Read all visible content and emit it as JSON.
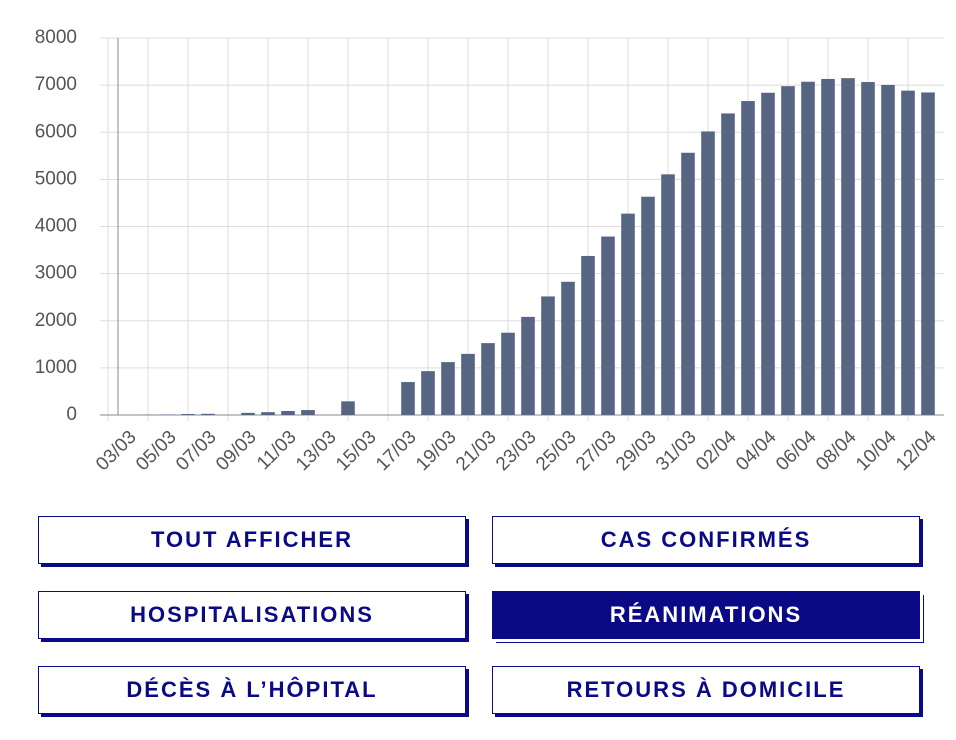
{
  "chart_data": {
    "type": "bar",
    "color": "#566682",
    "categories": [
      "03/03",
      null,
      "05/03",
      null,
      "07/03",
      null,
      "09/03",
      null,
      "11/03",
      null,
      "13/03",
      null,
      "15/03",
      null,
      "17/03",
      null,
      "19/03",
      null,
      "21/03",
      null,
      "23/03",
      null,
      "25/03",
      null,
      "27/03",
      null,
      "29/03",
      null,
      "31/03",
      null,
      "02/04",
      null,
      "04/04",
      null,
      "06/04",
      null,
      "08/04",
      null,
      "10/04",
      null,
      "12/04"
    ],
    "values": [
      0,
      5,
      10,
      20,
      25,
      0,
      45,
      60,
      85,
      105,
      0,
      290,
      0,
      0,
      699,
      931,
      1122,
      1297,
      1525,
      1746,
      2082,
      2516,
      2827,
      3375,
      3787,
      4273,
      4632,
      5107,
      5565,
      6017,
      6399,
      6662,
      6838,
      6978,
      7072,
      7131,
      7148,
      7066,
      7004,
      6883,
      6845
    ],
    "ylim": [
      0,
      8000
    ],
    "yticks": [
      0,
      1000,
      2000,
      3000,
      4000,
      5000,
      6000,
      7000,
      8000
    ],
    "grid": true
  },
  "buttons": [
    {
      "label": "TOUT AFFICHER",
      "active": false
    },
    {
      "label": "CAS CONFIRMÉS",
      "active": false
    },
    {
      "label": "HOSPITALISATIONS",
      "active": false
    },
    {
      "label": "RÉANIMATIONS",
      "active": true
    },
    {
      "label": "DÉCÈS À L’HÔPITAL",
      "active": false
    },
    {
      "label": "RETOURS À DOMICILE",
      "active": false
    }
  ]
}
